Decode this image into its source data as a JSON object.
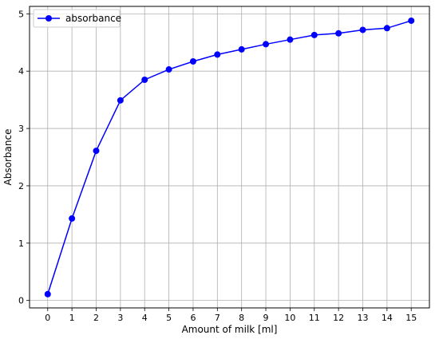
{
  "chart_data": {
    "type": "line",
    "title": "",
    "xlabel": "Amount of milk [ml]",
    "ylabel": "Absorbance",
    "x": [
      0,
      1,
      2,
      3,
      4,
      5,
      6,
      7,
      8,
      9,
      10,
      11,
      12,
      13,
      14,
      15
    ],
    "xticks": [
      "0",
      "1",
      "2",
      "3",
      "4",
      "5",
      "6",
      "7",
      "8",
      "9",
      "10",
      "11",
      "12",
      "13",
      "14",
      "15"
    ],
    "yticks": [
      "0",
      "1",
      "2",
      "3",
      "4",
      "5"
    ],
    "xlim": [
      -0.75,
      15.75
    ],
    "ylim": [
      -0.13,
      5.13
    ],
    "grid": true,
    "legend": "upper-left",
    "series": [
      {
        "name": "absorbance",
        "color": "#0000ff",
        "marker": "circle",
        "values": [
          0.11,
          1.43,
          2.61,
          3.49,
          3.85,
          4.03,
          4.17,
          4.29,
          4.38,
          4.47,
          4.55,
          4.63,
          4.66,
          4.72,
          4.75,
          4.88
        ]
      }
    ]
  }
}
